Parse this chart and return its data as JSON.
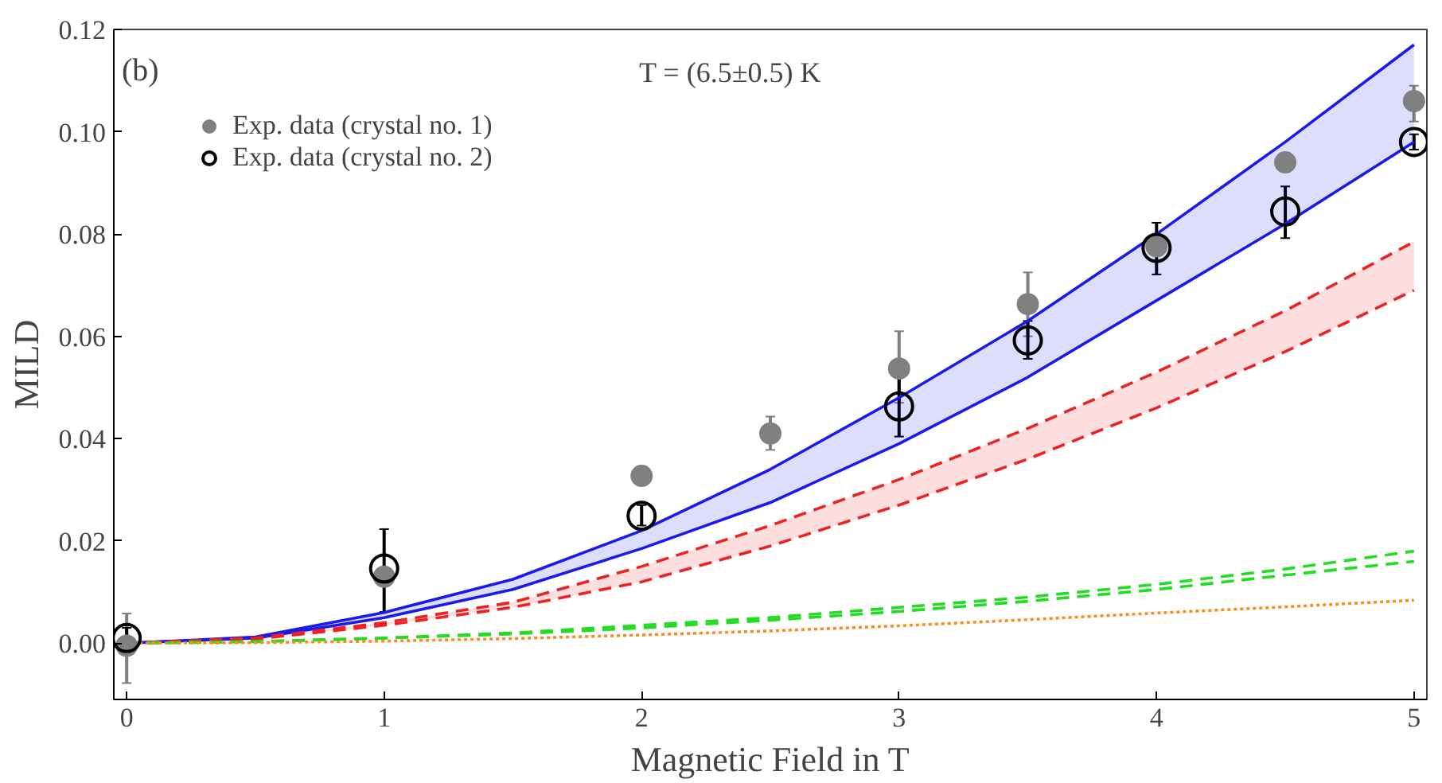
{
  "chart_data": {
    "type": "line",
    "xlabel": "Magnetic Field in T",
    "ylabel": "MILD",
    "annotations": [
      "(b)",
      "T = (6.5±0.5) K"
    ],
    "x": [
      0,
      0.5,
      1,
      1.5,
      2,
      2.5,
      3,
      3.5,
      4,
      4.5,
      5
    ],
    "xlim": [
      -0.05,
      5.05
    ],
    "ylim": [
      -0.011,
      0.12
    ],
    "xticks": [
      0,
      1,
      2,
      3,
      4,
      5
    ],
    "yticks": [
      {
        "value": 0,
        "label": "0.00"
      },
      {
        "value": 0.02,
        "label": "0.02"
      },
      {
        "value": 0.04,
        "label": "0.04"
      },
      {
        "value": 0.06,
        "label": "0.06"
      },
      {
        "value": 0.08,
        "label": "0.08"
      },
      {
        "value": 0.1,
        "label": "0.10"
      },
      {
        "value": 0.12,
        "label": "0.12"
      }
    ],
    "grid": false,
    "legend": "top left",
    "series": [
      {
        "color": "#1a1aee",
        "line_style": "solid",
        "values": [
          0,
          0.0012,
          0.006,
          0.0125,
          0.022,
          0.034,
          0.048,
          0.063,
          0.08,
          0.098,
          0.117
        ],
        "lower": [
          0,
          0.001,
          0.005,
          0.0105,
          0.0185,
          0.0275,
          0.039,
          0.052,
          0.067,
          0.082,
          0.098
        ],
        "upper": [
          0,
          0.0012,
          0.006,
          0.0125,
          0.022,
          0.034,
          0.048,
          0.063,
          0.08,
          0.098,
          0.117
        ]
      },
      {
        "color": "#1a1aee",
        "line_style": "solid",
        "values": [
          0,
          0.001,
          0.005,
          0.0105,
          0.0185,
          0.0275,
          0.039,
          0.052,
          0.067,
          0.082,
          0.098
        ]
      },
      {
        "color": "#ee2222",
        "line_style": "dashed",
        "values": [
          0,
          0.001,
          0.004,
          0.008,
          0.015,
          0.023,
          0.032,
          0.042,
          0.053,
          0.065,
          0.0785
        ],
        "lower": [
          0,
          0.0008,
          0.0035,
          0.007,
          0.012,
          0.019,
          0.027,
          0.036,
          0.046,
          0.057,
          0.069
        ],
        "upper": [
          0,
          0.001,
          0.004,
          0.008,
          0.015,
          0.023,
          0.032,
          0.042,
          0.053,
          0.065,
          0.0785
        ]
      },
      {
        "color": "#ee2222",
        "line_style": "dashed",
        "values": [
          0,
          0.0008,
          0.0035,
          0.007,
          0.012,
          0.019,
          0.027,
          0.036,
          0.046,
          0.057,
          0.069
        ]
      },
      {
        "color": "#22dd22",
        "line_style": "dashed",
        "values": [
          0,
          0.0003,
          0.001,
          0.002,
          0.0035,
          0.005,
          0.007,
          0.009,
          0.0115,
          0.0145,
          0.018
        ]
      },
      {
        "color": "#22dd22",
        "line_style": "dashed",
        "values": [
          0,
          0.0003,
          0.001,
          0.0018,
          0.003,
          0.0045,
          0.0062,
          0.0082,
          0.0105,
          0.0133,
          0.016
        ]
      },
      {
        "color": "#ff8c1a",
        "line_style": "dotted",
        "values": [
          0,
          0.0001,
          0.0004,
          0.0009,
          0.0016,
          0.0024,
          0.0034,
          0.0046,
          0.0059,
          0.0071,
          0.0084
        ]
      },
      {
        "type": "scatter",
        "name": "Exp. data (crystal no. 1)",
        "color": "#808080",
        "marker": "circle",
        "x": [
          0,
          1,
          2,
          2.5,
          3,
          3.5,
          4,
          4.5,
          5
        ],
        "values": [
          -0.0005,
          0.013,
          0.0327,
          0.041,
          0.0537,
          0.0663,
          0.0776,
          0.094,
          0.106
        ],
        "errors": [
          [
            -0.0078,
            0.0058
          ],
          null,
          null,
          [
            0.0378,
            0.0443
          ],
          [
            0.047,
            0.061
          ],
          [
            0.06,
            0.0725
          ],
          null,
          null,
          [
            0.102,
            0.109
          ]
        ]
      },
      {
        "type": "scatter",
        "name": "Exp. data (crystal no. 2)",
        "color": "#000000",
        "marker": "open_circle",
        "x": [
          0,
          1,
          2,
          3,
          3.5,
          4,
          4.5,
          5
        ],
        "values": [
          0.001,
          0.0146,
          0.0249,
          0.0463,
          0.0592,
          0.0773,
          0.0844,
          0.098
        ],
        "errors": [
          [
            -0.001,
            0.003
          ],
          [
            0.0061,
            0.0223
          ],
          [
            0.023,
            0.027
          ],
          [
            0.0404,
            0.0524
          ],
          [
            0.0556,
            0.063
          ],
          [
            0.0721,
            0.0822
          ],
          [
            0.0792,
            0.0893
          ],
          [
            0.0965,
            0.0995
          ]
        ]
      }
    ]
  }
}
